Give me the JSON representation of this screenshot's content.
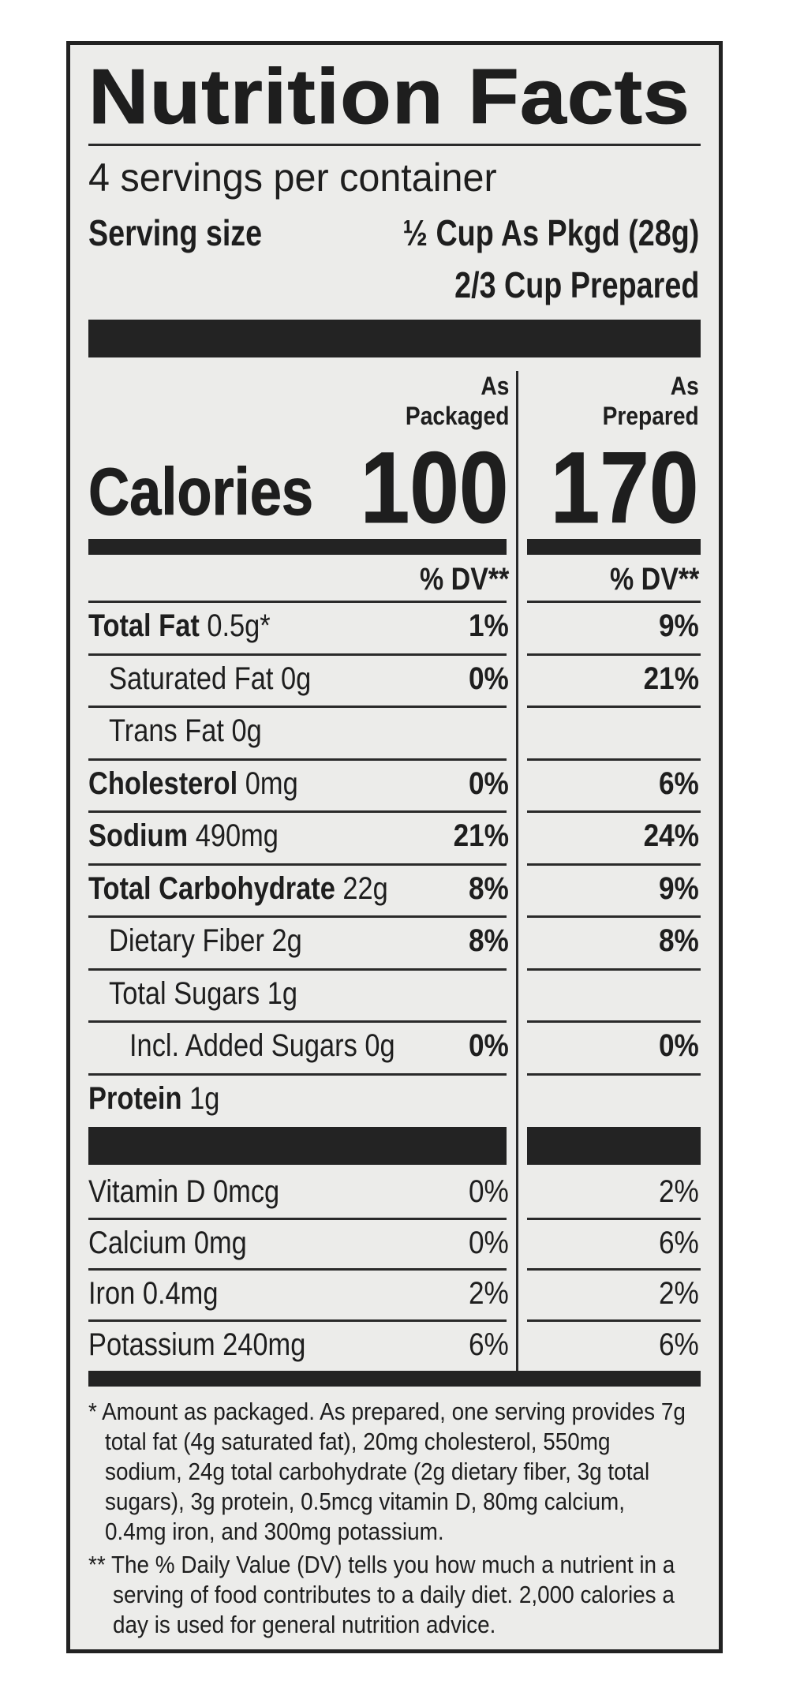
{
  "title": "Nutrition Facts",
  "servings_per_container": "4 servings per container",
  "serving_size": {
    "label": "Serving size",
    "value_packaged": "½ Cup As Pkgd (28g)",
    "value_prepared": "2/3 Cup Prepared"
  },
  "columns": {
    "packaged_line1": "As",
    "packaged_line2": "Packaged",
    "prepared_line1": "As",
    "prepared_line2": "Prepared"
  },
  "calories": {
    "label": "Calories",
    "packaged": "100",
    "prepared": "170"
  },
  "dv_header": {
    "packaged": "% DV**",
    "prepared": "% DV**"
  },
  "nutrients": [
    {
      "name": "Total Fat",
      "amount": "0.5g*",
      "packaged_dv": "1%",
      "prepared_dv": "9%"
    },
    {
      "name": "Saturated Fat",
      "amount": "0g",
      "packaged_dv": "0%",
      "prepared_dv": "21%"
    },
    {
      "name": "Trans Fat",
      "amount": "0g",
      "packaged_dv": "",
      "prepared_dv": ""
    },
    {
      "name": "Cholesterol",
      "amount": "0mg",
      "packaged_dv": "0%",
      "prepared_dv": "6%"
    },
    {
      "name": "Sodium",
      "amount": "490mg",
      "packaged_dv": "21%",
      "prepared_dv": "24%"
    },
    {
      "name": "Total Carbohydrate",
      "amount": "22g",
      "packaged_dv": "8%",
      "prepared_dv": "9%"
    },
    {
      "name": "Dietary Fiber",
      "amount": "2g",
      "packaged_dv": "8%",
      "prepared_dv": "8%"
    },
    {
      "name": "Total Sugars",
      "amount": "1g",
      "packaged_dv": "",
      "prepared_dv": ""
    },
    {
      "name": "Incl. Added Sugars",
      "amount": "0g",
      "packaged_dv": "0%",
      "prepared_dv": "0%"
    },
    {
      "name": "Protein",
      "amount": "1g",
      "packaged_dv": "",
      "prepared_dv": ""
    }
  ],
  "vitamins": [
    {
      "name": "Vitamin D",
      "amount": "0mcg",
      "packaged_dv": "0%",
      "prepared_dv": "2%"
    },
    {
      "name": "Calcium",
      "amount": "0mg",
      "packaged_dv": "0%",
      "prepared_dv": "6%"
    },
    {
      "name": "Iron",
      "amount": "0.4mg",
      "packaged_dv": "2%",
      "prepared_dv": "2%"
    },
    {
      "name": "Potassium",
      "amount": "240mg",
      "packaged_dv": "6%",
      "prepared_dv": "6%"
    }
  ],
  "footnotes": {
    "asterisk": [
      "* Amount as packaged. As prepared, one serving provides 7g",
      "total fat (4g saturated fat), 20mg cholesterol, 550mg",
      "sodium, 24g total carbohydrate (2g dietary fiber, 3g total",
      "sugars), 3g protein, 0.5mcg vitamin D, 80mg calcium,",
      "0.4mg iron, and 300mg potassium."
    ],
    "double_asterisk": [
      "** The % Daily Value (DV) tells you how much a nutrient in a",
      "serving of food contributes to a daily diet. 2,000 calories a",
      "day is used for general nutrition advice."
    ]
  }
}
